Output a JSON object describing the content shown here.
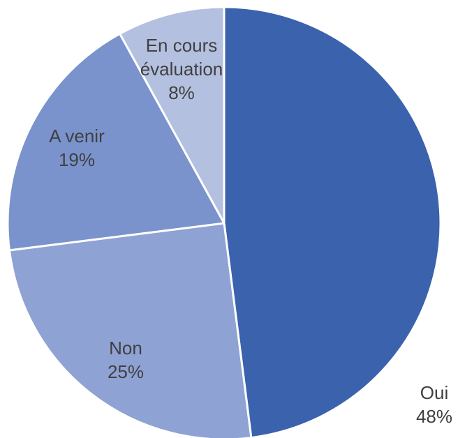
{
  "chart_data": {
    "type": "pie",
    "categories": [
      "Oui",
      "Non",
      "A venir",
      "En cours évaluation"
    ],
    "values": [
      48,
      25,
      19,
      8
    ],
    "value_labels": [
      "48%",
      "25%",
      "19%",
      "8%"
    ],
    "colors": [
      "#3a62ad",
      "#8fa2d4",
      "#7a93cc",
      "#b4c0e0"
    ]
  }
}
